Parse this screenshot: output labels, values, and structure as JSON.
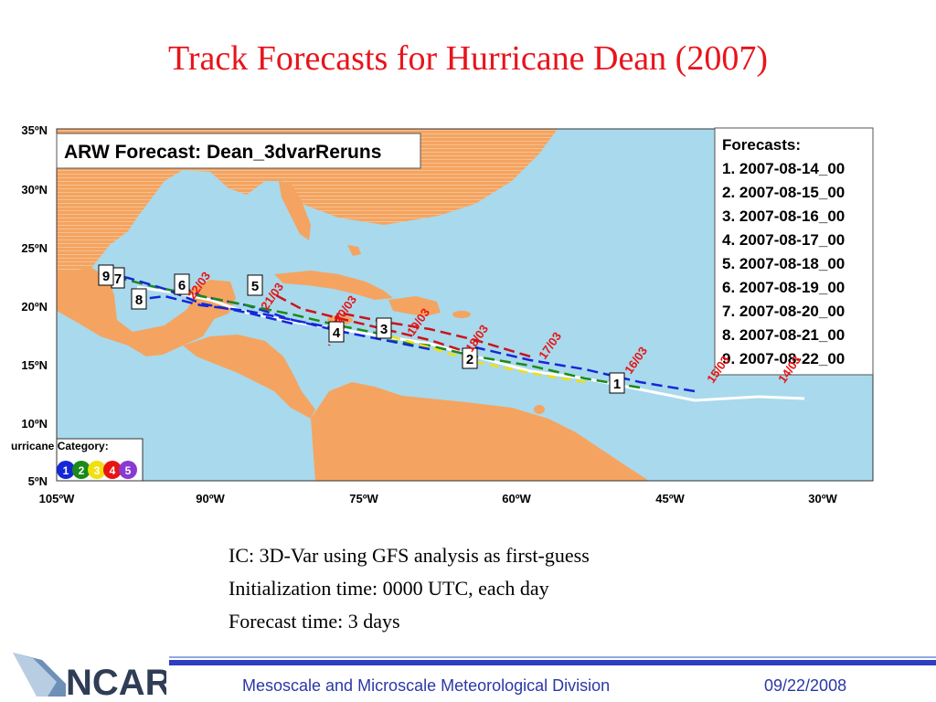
{
  "slide": {
    "title": "Track Forecasts for Hurricane Dean (2007)",
    "notes": [
      "IC: 3D-Var using GFS analysis as first-guess",
      "Initialization time: 0000 UTC, each day",
      "Forecast time: 3 days"
    ]
  },
  "map": {
    "title": "ARW Forecast: Dean_3dvarReruns",
    "lat_labels": [
      "35ºN",
      "30ºN",
      "25ºN",
      "20ºN",
      "15ºN",
      "10ºN",
      "5ºN"
    ],
    "lon_labels": [
      "105ºW",
      "90ºW",
      "75ºW",
      "60ºW",
      "45ºW",
      "30ºW"
    ],
    "legend": {
      "heading": "Forecasts:",
      "entries": [
        "1. 2007-08-14_00",
        "2. 2007-08-15_00",
        "3. 2007-08-16_00",
        "4. 2007-08-17_00",
        "5. 2007-08-18_00",
        "6. 2007-08-19_00",
        "7. 2007-08-20_00",
        "8. 2007-08-21_00",
        "9. 2007-08-22_00"
      ]
    },
    "category": {
      "heading": "urricane Category:",
      "levels": [
        {
          "label": "1",
          "color": "#1428d8"
        },
        {
          "label": "2",
          "color": "#1a8a1a"
        },
        {
          "label": "3",
          "color": "#f0e010"
        },
        {
          "label": "4",
          "color": "#e81414"
        },
        {
          "label": "5",
          "color": "#8a3ad0"
        }
      ]
    },
    "date_labels": [
      "14/03",
      "15/03",
      "16/03",
      "17/03",
      "18/03",
      "19/03",
      "20/03",
      "21/03",
      "22/03"
    ],
    "forecast_markers": [
      "1",
      "2",
      "3",
      "4",
      "5",
      "6",
      "7",
      "8",
      "9"
    ],
    "colors": {
      "ocean": "#a9d9ec",
      "land": "#f4a460",
      "track_white": "#ffffff",
      "track_blue": "#1428d8",
      "track_green": "#1a8a1a",
      "track_yellow": "#f0e010",
      "track_red": "#c8141c",
      "date_label": "#e81414"
    }
  },
  "footer": {
    "logo_text": "NCAR",
    "division": "Mesoscale and Microscale Meteorological Division",
    "date": "09/22/2008"
  }
}
